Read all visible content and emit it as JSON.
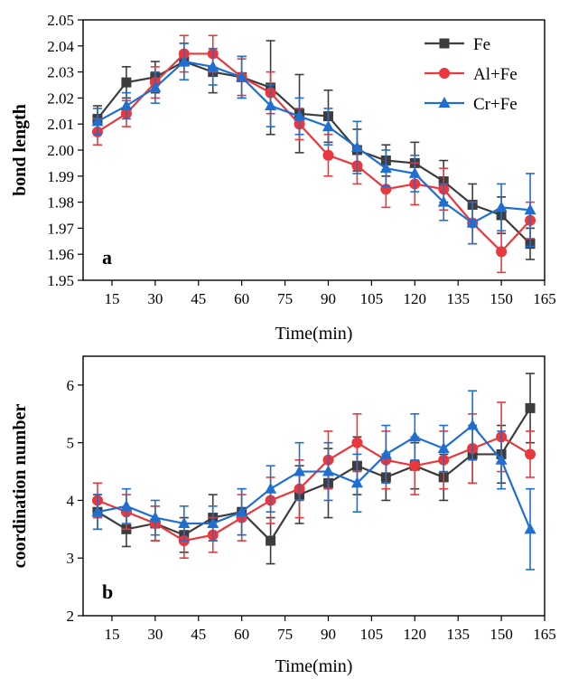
{
  "chart_data": [
    {
      "type": "line",
      "panel_label": "a",
      "xlabel": "Time(min)",
      "ylabel": "bond length",
      "xlim": [
        5,
        165
      ],
      "ylim": [
        1.95,
        2.05
      ],
      "xticks": [
        15,
        30,
        45,
        60,
        75,
        90,
        105,
        120,
        135,
        150,
        165
      ],
      "yticks": [
        1.95,
        1.96,
        1.97,
        1.98,
        1.99,
        2.0,
        2.01,
        2.02,
        2.03,
        2.04,
        2.05
      ],
      "ytick_labels": [
        "1.95",
        "1.96",
        "1.97",
        "1.98",
        "1.99",
        "2.00",
        "2.01",
        "2.02",
        "2.03",
        "2.04",
        "2.05"
      ],
      "legend_position": "top-right",
      "grid": false,
      "x": [
        10,
        20,
        30,
        40,
        50,
        60,
        70,
        80,
        90,
        100,
        110,
        120,
        130,
        140,
        150,
        160
      ],
      "series": [
        {
          "name": "Fe",
          "color": "#3d3d3d",
          "marker": "square",
          "values": [
            2.012,
            2.026,
            2.028,
            2.034,
            2.03,
            2.028,
            2.024,
            2.014,
            2.013,
            2.0,
            1.996,
            1.995,
            1.988,
            1.979,
            1.975,
            1.964
          ],
          "errors": [
            0.005,
            0.006,
            0.006,
            0.007,
            0.008,
            0.008,
            0.018,
            0.015,
            0.01,
            0.008,
            0.006,
            0.008,
            0.008,
            0.008,
            0.007,
            0.006
          ]
        },
        {
          "name": "Al+Fe",
          "color": "#e8383d",
          "marker": "circle",
          "values": [
            2.007,
            2.014,
            2.026,
            2.037,
            2.037,
            2.028,
            2.022,
            2.01,
            1.998,
            1.994,
            1.985,
            1.987,
            1.985,
            1.972,
            1.961,
            1.973
          ],
          "errors": [
            0.005,
            0.005,
            0.006,
            0.007,
            0.007,
            0.007,
            0.008,
            0.006,
            0.008,
            0.007,
            0.007,
            0.008,
            0.008,
            0.008,
            0.008,
            0.007
          ]
        },
        {
          "name": "Cr+Fe",
          "color": "#1f6fd1",
          "marker": "triangle",
          "values": [
            2.011,
            2.017,
            2.024,
            2.034,
            2.032,
            2.028,
            2.017,
            2.013,
            2.009,
            2.001,
            1.993,
            1.991,
            1.98,
            1.972,
            1.978,
            1.977
          ],
          "errors": [
            0.005,
            0.005,
            0.006,
            0.007,
            0.007,
            0.008,
            0.008,
            0.007,
            0.007,
            0.01,
            0.007,
            0.007,
            0.007,
            0.008,
            0.009,
            0.014
          ]
        }
      ]
    },
    {
      "type": "line",
      "panel_label": "b",
      "xlabel": "Time(min)",
      "ylabel": "coordination number",
      "xlim": [
        5,
        165
      ],
      "ylim": [
        2,
        6.5
      ],
      "xticks": [
        15,
        30,
        45,
        60,
        75,
        90,
        105,
        120,
        135,
        150,
        165
      ],
      "yticks": [
        2,
        3,
        4,
        5,
        6
      ],
      "ytick_labels": [
        "2",
        "3",
        "4",
        "5",
        "6"
      ],
      "grid": false,
      "x": [
        10,
        20,
        30,
        40,
        50,
        60,
        70,
        80,
        90,
        100,
        110,
        120,
        130,
        140,
        150,
        160
      ],
      "series": [
        {
          "name": "Fe",
          "color": "#3d3d3d",
          "marker": "square",
          "values": [
            3.8,
            3.5,
            3.6,
            3.4,
            3.7,
            3.8,
            3.3,
            4.1,
            4.3,
            4.6,
            4.4,
            4.6,
            4.4,
            4.8,
            4.8,
            5.6
          ],
          "errors": [
            0.3,
            0.3,
            0.3,
            0.3,
            0.4,
            0.4,
            0.4,
            0.5,
            0.6,
            0.5,
            0.4,
            0.4,
            0.4,
            0.5,
            0.5,
            0.6
          ]
        },
        {
          "name": "Al+Fe",
          "color": "#e8383d",
          "marker": "circle",
          "values": [
            4.0,
            3.8,
            3.6,
            3.3,
            3.4,
            3.7,
            4.0,
            4.2,
            4.7,
            5.0,
            4.7,
            4.6,
            4.7,
            4.9,
            5.1,
            4.8
          ],
          "errors": [
            0.3,
            0.3,
            0.3,
            0.3,
            0.3,
            0.4,
            0.4,
            0.5,
            0.5,
            0.5,
            0.5,
            0.5,
            0.5,
            0.6,
            0.6,
            0.4
          ]
        },
        {
          "name": "Cr+Fe",
          "color": "#1f6fd1",
          "marker": "triangle",
          "values": [
            3.8,
            3.9,
            3.7,
            3.6,
            3.6,
            3.8,
            4.2,
            4.5,
            4.5,
            4.3,
            4.8,
            5.1,
            4.9,
            5.3,
            4.7,
            3.5
          ],
          "errors": [
            0.3,
            0.3,
            0.3,
            0.3,
            0.3,
            0.4,
            0.4,
            0.5,
            0.5,
            0.5,
            0.5,
            0.4,
            0.4,
            0.6,
            0.5,
            0.7
          ]
        }
      ]
    }
  ]
}
